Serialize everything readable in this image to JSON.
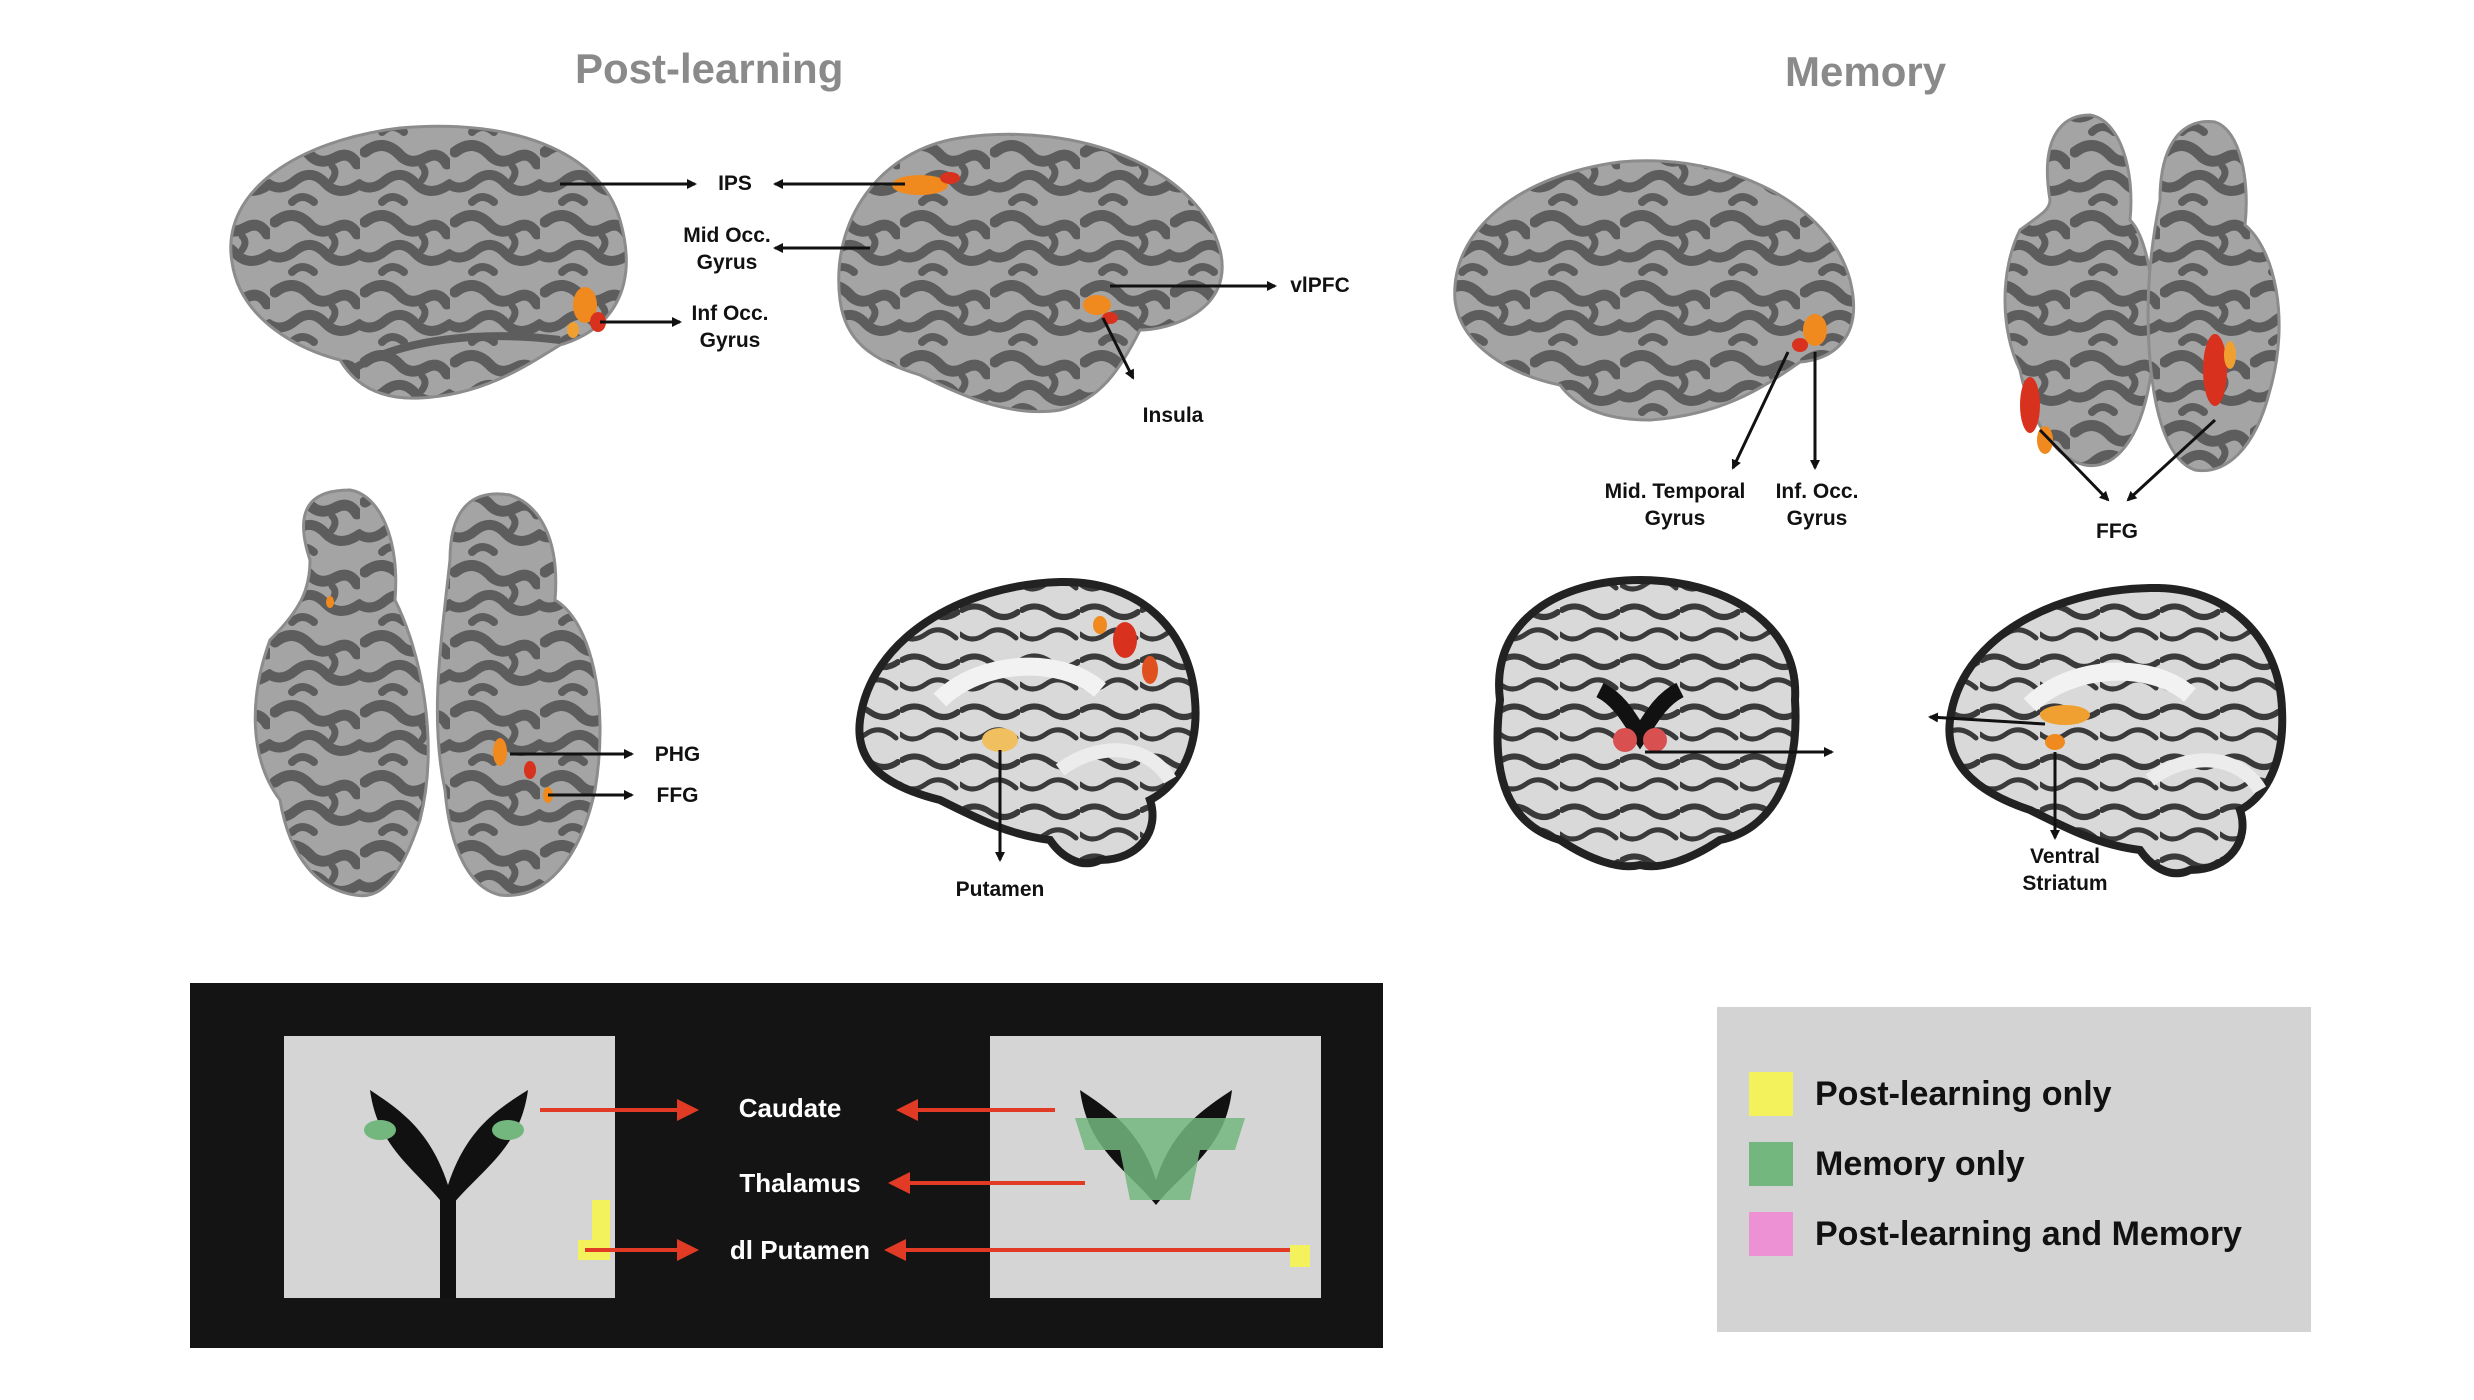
{
  "titles": {
    "post_learning": "Post-learning",
    "memory": "Memory"
  },
  "labels": {
    "ips": "IPS",
    "mid_occ": "Mid Occ.\nGyrus",
    "inf_occ": "Inf Occ.\nGyrus",
    "vlpfc": "vlPFC",
    "insula": "Insula",
    "phg": "PHG",
    "ffg_post": "FFG",
    "putamen": "Putamen",
    "mid_temporal": "Mid. Temporal\nGyrus",
    "inf_occ_mem": "Inf. Occ.\nGyrus",
    "ffg_mem": "FFG",
    "ventral_striatum": "Ventral\nStriatum"
  },
  "panel": {
    "caudate": "Caudate",
    "thalamus": "Thalamus",
    "dl_putamen": "dl Putamen"
  },
  "legend": {
    "items": [
      {
        "label": "Post-learning only",
        "color": "#f4f25c"
      },
      {
        "label": "Memory only",
        "color": "#73b77f"
      },
      {
        "label": "Post-learning and Memory",
        "color": "#ee90d4"
      }
    ]
  },
  "colors": {
    "brain_light": "#a3a3a3",
    "brain_dark": "#5c5c5c",
    "activation_orange": "#f08a1e",
    "activation_red": "#d8321e",
    "arrow_red": "#e23b25",
    "panel_bg": "#141414"
  }
}
